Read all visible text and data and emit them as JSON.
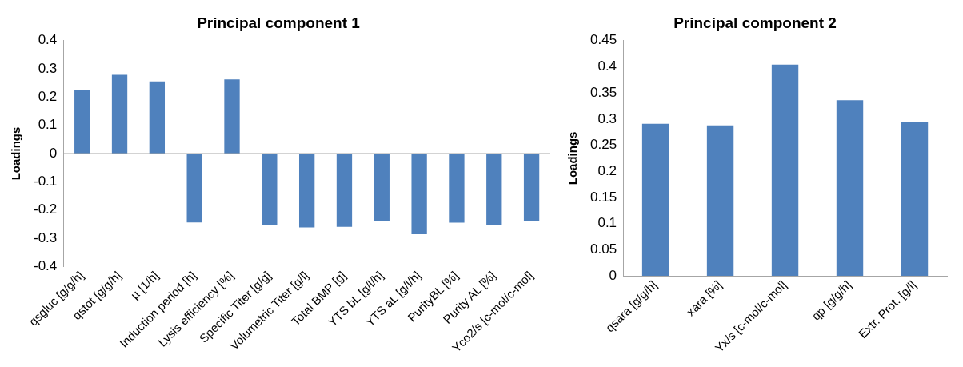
{
  "chart_data": [
    {
      "type": "bar",
      "title": "Principal component 1",
      "ylabel": "Loadings",
      "categories": [
        "qsgluc [g/g/h]",
        "qstot [g/g/h]",
        "µ [1/h]",
        "Induction period [h]",
        "Lysis efficiency [%]",
        "Specific Titer [g/g]",
        "Volumetric Titer [g/l]",
        "Total BMP [g]",
        "YTS bL [g/l/h]",
        "YTS aL [g/l/h]",
        "PurityBL [%]",
        "Purity AL [%]",
        "Yco2/s [c-mol/c-mol]"
      ],
      "values": [
        0.225,
        0.279,
        0.256,
        -0.244,
        0.263,
        -0.255,
        -0.262,
        -0.26,
        -0.239,
        -0.286,
        -0.245,
        -0.252,
        -0.239
      ],
      "color": "#4f81bd",
      "ylim": [
        -0.4,
        0.4
      ],
      "yticks": [
        -0.4,
        -0.3,
        -0.2,
        -0.1,
        0,
        0.1,
        0.2,
        0.3,
        0.4
      ],
      "grid": false,
      "legend": false,
      "ref_lines": [
        {
          "axis": "y",
          "value": 0,
          "color": "#a6a6a6"
        }
      ]
    },
    {
      "type": "bar",
      "title": "Principal component 2",
      "ylabel": "Loadings",
      "categories": [
        "qsara [g/g/h]",
        "xara [%]",
        "Yx/s [c-mol/c-mol]",
        "qp [g/g/h]",
        "Extr. Prot. [g/l]"
      ],
      "values": [
        0.291,
        0.288,
        0.404,
        0.336,
        0.295
      ],
      "color": "#4f81bd",
      "ylim": [
        0,
        0.45
      ],
      "yticks": [
        0,
        0.05,
        0.1,
        0.15,
        0.2,
        0.25,
        0.3,
        0.35,
        0.4,
        0.45
      ],
      "grid": false,
      "legend": false
    }
  ]
}
